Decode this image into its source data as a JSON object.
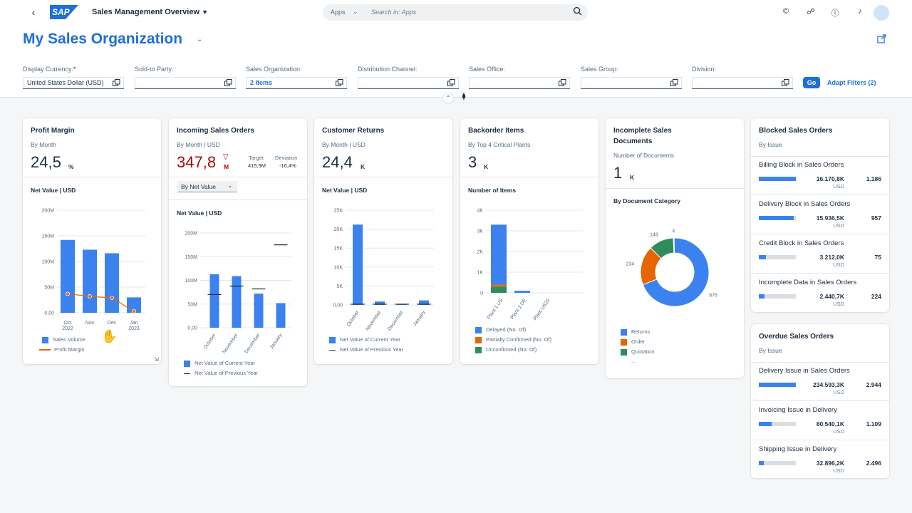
{
  "shell": {
    "back_icon": "back-arrow-icon",
    "logo": "SAP",
    "app_title": "Sales Management Overview",
    "search": {
      "scope": "Apps",
      "placeholder": "Search in: Apps"
    }
  },
  "header": {
    "title": "My Sales Organization",
    "filters": [
      {
        "label": "Display Currency:",
        "required": true,
        "value": "United States Dollar (USD)"
      },
      {
        "label": "Sold-to Party:",
        "value": ""
      },
      {
        "label": "Sales Organization:",
        "value": "2 Items"
      },
      {
        "label": "Distribution Channel:",
        "value": ""
      },
      {
        "label": "Sales Office:",
        "value": ""
      },
      {
        "label": "Sales Group:",
        "value": ""
      },
      {
        "label": "Division:",
        "value": ""
      }
    ],
    "go": "Go",
    "adapt": "Adapt Filters (2)"
  },
  "cards": {
    "profit": {
      "title": "Profit Margin",
      "subtitle": "By Month",
      "kpi": "24,5",
      "unit": "%",
      "section": "Net Value | USD",
      "legend": [
        "Sales Volume",
        "Profit Margin"
      ]
    },
    "incoming": {
      "title": "Incoming Sales Orders",
      "subtitle": "By Month | USD",
      "kpi": "347,8",
      "kpi_unit": "M",
      "target_label": "Target",
      "target_value": "415,9M",
      "deviation_label": "Deviation",
      "deviation_value": "-16,4%",
      "select": "By Net Value",
      "section": "Net Value | USD",
      "legend": [
        "Net Value of Current Year",
        "Net Value of Previous Year"
      ]
    },
    "returns": {
      "title": "Customer Returns",
      "subtitle": "By Month | USD",
      "kpi": "24,4",
      "unit": "K",
      "section": "Net Value | USD",
      "legend": [
        "Net Value of Current Year",
        "Net Value of Previous Year"
      ]
    },
    "backorder": {
      "title": "Backorder Items",
      "subtitle": "By Top 4 Critical Plants",
      "kpi": "3",
      "unit": "K",
      "section": "Number of Items",
      "legend": [
        "Delayed (No. Of)",
        "Partially Confirmed (No. Of)",
        "Unconfirmed (No. Of)"
      ]
    },
    "incomplete": {
      "title_line1": "Incomplete Sales",
      "title_line2": "Documents",
      "subtitle": "Number of Documents",
      "kpi": "1",
      "unit": "K",
      "section": "By Document Category",
      "legend": [
        "Returns",
        "Order",
        "Quotation",
        "..."
      ]
    },
    "blocked": {
      "title": "Blocked Sales Orders",
      "subtitle": "By Issue",
      "items": [
        {
          "label": "Billing Block in Sales Orders",
          "value": "16.170,8K",
          "unit": "USD",
          "count": "1.186",
          "fill": 1.0
        },
        {
          "label": "Delivery Block in Sales Orders",
          "value": "15.936,5K",
          "unit": "USD",
          "count": "957",
          "fill": 0.95
        },
        {
          "label": "Credit Block in Sales Orders",
          "value": "3.212,0K",
          "unit": "USD",
          "count": "75",
          "fill": 0.2
        },
        {
          "label": "Incomplete Data in Sales Orders",
          "value": "2.440,7K",
          "unit": "USD",
          "count": "224",
          "fill": 0.15
        }
      ]
    },
    "overdue": {
      "title": "Overdue Sales Orders",
      "subtitle": "By Issue",
      "items": [
        {
          "label": "Delivery Issue in Sales Orders",
          "value": "234.593,3K",
          "unit": "USD",
          "count": "2.944",
          "fill": 1.0
        },
        {
          "label": "Invoicing Issue in Delivery",
          "value": "80.540,1K",
          "unit": "USD",
          "count": "1.109",
          "fill": 0.34
        },
        {
          "label": "Shipping Issue in Delivery",
          "value": "32.896,2K",
          "unit": "USD",
          "count": "2.496",
          "fill": 0.14
        }
      ]
    }
  },
  "chart_data": [
    {
      "type": "bar",
      "id": "profit",
      "categories": [
        "Oct 2022",
        "Nov",
        "Dec",
        "Jan 2023"
      ],
      "cat_lines": [
        [
          "Oct",
          "2022"
        ],
        [
          "Nov",
          ""
        ],
        [
          "Dec",
          ""
        ],
        [
          "Jan",
          "2023"
        ]
      ],
      "series": [
        {
          "name": "Sales Volume",
          "values": [
            142,
            123,
            116,
            30
          ]
        },
        {
          "name": "Profit Margin",
          "values": [
            37,
            32,
            29,
            3
          ]
        }
      ],
      "yticks": [
        "0,00",
        "50M",
        "100M",
        "150M",
        "200M"
      ],
      "ylim": [
        0,
        200
      ]
    },
    {
      "type": "bar",
      "id": "incoming",
      "categories": [
        "October",
        "November",
        "December",
        "January"
      ],
      "series": [
        {
          "name": "Net Value of Current Year",
          "values": [
            113,
            109,
            72,
            52
          ]
        },
        {
          "name": "Net Value of Previous Year",
          "values": [
            70,
            88,
            82,
            175
          ]
        }
      ],
      "yticks": [
        "0,00",
        "50M",
        "100M",
        "150M",
        "200M"
      ],
      "ylim": [
        0,
        200
      ]
    },
    {
      "type": "bar",
      "id": "returns",
      "categories": [
        "October",
        "November",
        "December",
        "January"
      ],
      "series": [
        {
          "name": "Net Value of Current Year",
          "values": [
            21200,
            900,
            300,
            1200
          ]
        },
        {
          "name": "Net Value of Previous Year",
          "values": [
            200,
            200,
            200,
            200
          ]
        }
      ],
      "yticks": [
        "0,00",
        "5K",
        "10K",
        "15K",
        "20K",
        "25K"
      ],
      "ylim": [
        0,
        25000
      ]
    },
    {
      "type": "bar",
      "id": "backorder",
      "categories": [
        "Plant 1 US",
        "Plant 1 DE",
        "Plant US20"
      ],
      "series": [
        {
          "name": "Delayed (No. Of)",
          "values": [
            2900,
            100,
            0
          ]
        },
        {
          "name": "Partially Confirmed (No. Of)",
          "values": [
            100,
            0,
            0
          ]
        },
        {
          "name": "Unconfirmed (No. Of)",
          "values": [
            300,
            0,
            0
          ]
        }
      ],
      "yticks": [
        "0",
        "1K",
        "2K",
        "3K",
        "4K"
      ],
      "ylim": [
        0,
        4000
      ]
    },
    {
      "type": "pie",
      "id": "incomplete",
      "categories": [
        "Returns",
        "Order",
        "Quotation",
        "..."
      ],
      "values": [
        876,
        234,
        149,
        4
      ]
    }
  ],
  "colors": {
    "blue": "#3b82ee",
    "orange": "#e76500",
    "green": "#2f8d5d",
    "accent": "#1e6fd9",
    "negative": "#aa0808"
  }
}
